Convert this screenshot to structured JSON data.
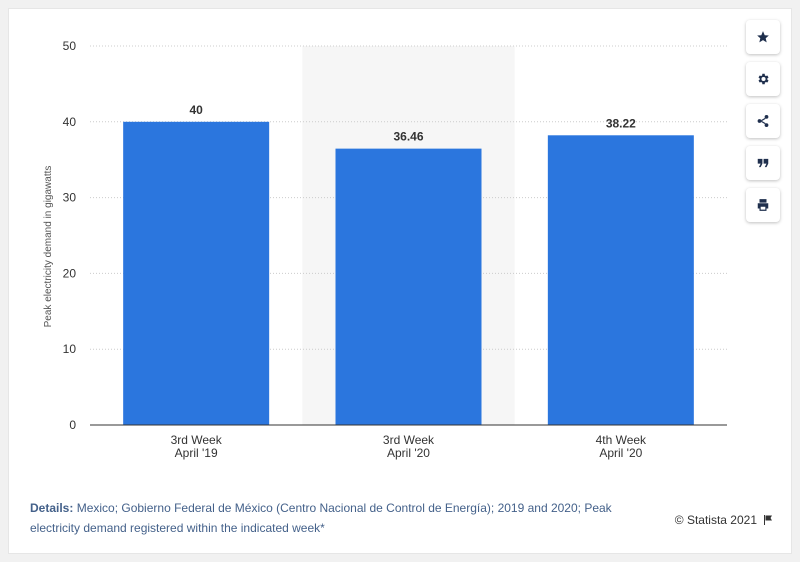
{
  "chart_data": {
    "type": "bar",
    "categories": [
      "3rd Week April '19",
      "3rd Week April '20",
      "4th Week April '20"
    ],
    "category_lines": [
      [
        "3rd Week",
        "April '19"
      ],
      [
        "3rd Week",
        "April '20"
      ],
      [
        "4th Week",
        "April '20"
      ]
    ],
    "values": [
      40,
      36.46,
      38.22
    ],
    "value_labels": [
      "40",
      "36.46",
      "38.22"
    ],
    "ylabel": "Peak electricity demand in gigawatts",
    "xlabel": "",
    "ylim": [
      0,
      50
    ],
    "yticks": [
      0,
      10,
      20,
      30,
      40,
      50
    ],
    "grid": true,
    "highlighted_category_index": 1,
    "colors": {
      "bar": "#2b76de",
      "highlight_band": "#f6f6f6",
      "grid": "#cccccc"
    }
  },
  "toolbar": {
    "items": [
      {
        "name": "star-icon"
      },
      {
        "name": "gear-icon"
      },
      {
        "name": "share-icon"
      },
      {
        "name": "quote-icon"
      },
      {
        "name": "print-icon"
      }
    ]
  },
  "details": {
    "label": "Details:",
    "text": " Mexico; Gobierno Federal de México (Centro Nacional de Control de Energía); 2019 and 2020; Peak electricity demand registered within the indicated week*"
  },
  "credit": {
    "text": "© Statista 2021",
    "icon": "flag-icon"
  }
}
